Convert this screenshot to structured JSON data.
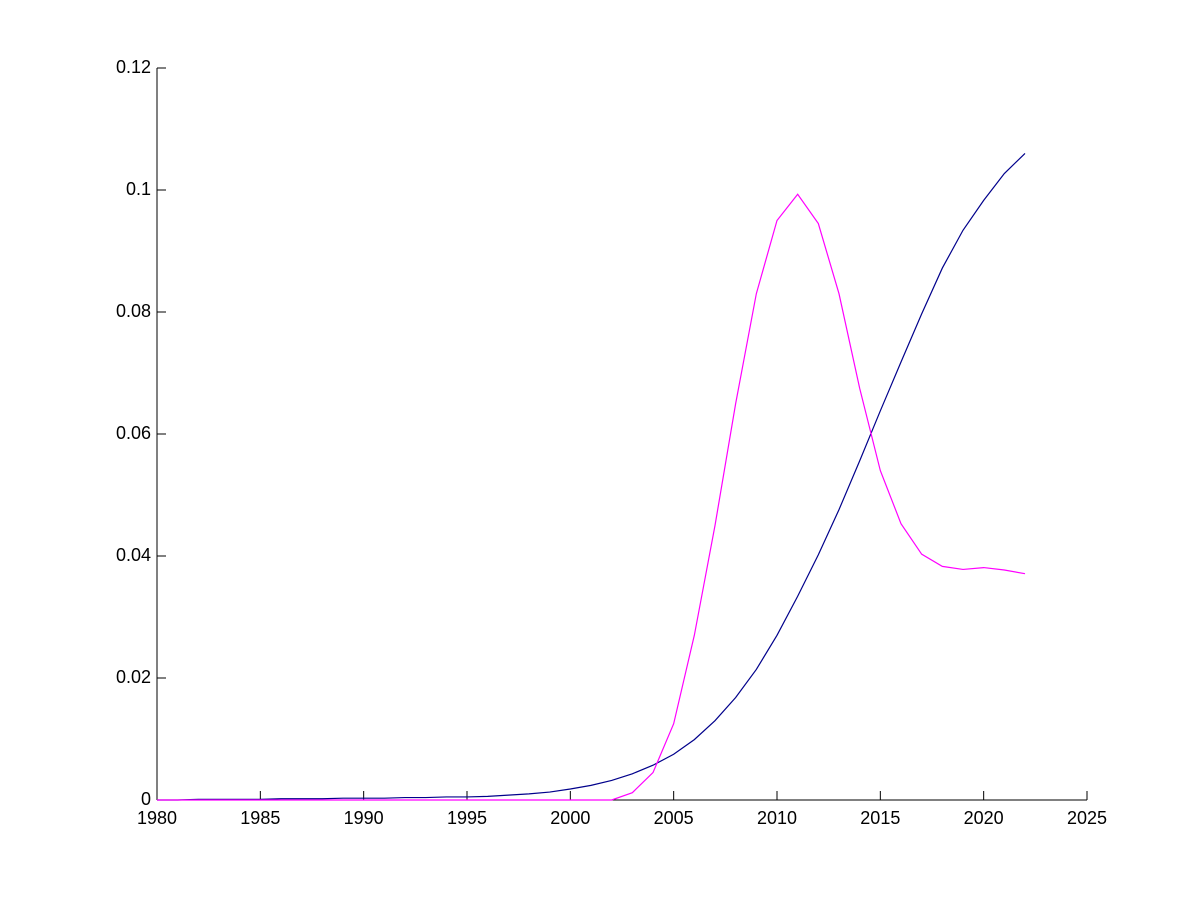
{
  "chart_data": {
    "type": "line",
    "x": [
      1980,
      1981,
      1982,
      1983,
      1984,
      1985,
      1986,
      1987,
      1988,
      1989,
      1990,
      1991,
      1992,
      1993,
      1994,
      1995,
      1996,
      1997,
      1998,
      1999,
      2000,
      2001,
      2002,
      2003,
      2004,
      2005,
      2006,
      2007,
      2008,
      2009,
      2010,
      2011,
      2012,
      2013,
      2014,
      2015,
      2016,
      2017,
      2018,
      2019,
      2020,
      2021,
      2022
    ],
    "series": [
      {
        "color": "#00008b",
        "values": [
          0,
          0,
          0.0001,
          0.0001,
          0.0001,
          0.0001,
          0.0002,
          0.0002,
          0.0002,
          0.0003,
          0.0003,
          0.0003,
          0.0004,
          0.0004,
          0.0005,
          0.0005,
          0.0006,
          0.0008,
          0.001,
          0.0013,
          0.0018,
          0.0024,
          0.0032,
          0.0043,
          0.0057,
          0.0075,
          0.0099,
          0.013,
          0.0168,
          0.0214,
          0.027,
          0.0334,
          0.0402,
          0.0476,
          0.0556,
          0.0638,
          0.0718,
          0.0797,
          0.0872,
          0.0934,
          0.0983,
          0.1027,
          0.106
        ]
      },
      {
        "color": "#ff00ff",
        "values": [
          0,
          0,
          0,
          0,
          0,
          0,
          0,
          0,
          0,
          0,
          0,
          0,
          0,
          0,
          0,
          0,
          0,
          0,
          0,
          0,
          0,
          0,
          0,
          0.0012,
          0.0045,
          0.0125,
          0.027,
          0.045,
          0.065,
          0.083,
          0.095,
          0.0993,
          0.0945,
          0.083,
          0.0675,
          0.054,
          0.0453,
          0.0403,
          0.0383,
          0.0378,
          0.0381,
          0.0377,
          0.0371
        ]
      }
    ],
    "xlim": [
      1980,
      2025
    ],
    "xticks": [
      1980,
      1985,
      1990,
      1995,
      2000,
      2005,
      2010,
      2015,
      2020,
      2025
    ],
    "ylim": [
      0,
      0.12
    ],
    "yticks": [
      0,
      0.02,
      0.04,
      0.06,
      0.08,
      0.1,
      0.12
    ],
    "grid": false
  }
}
